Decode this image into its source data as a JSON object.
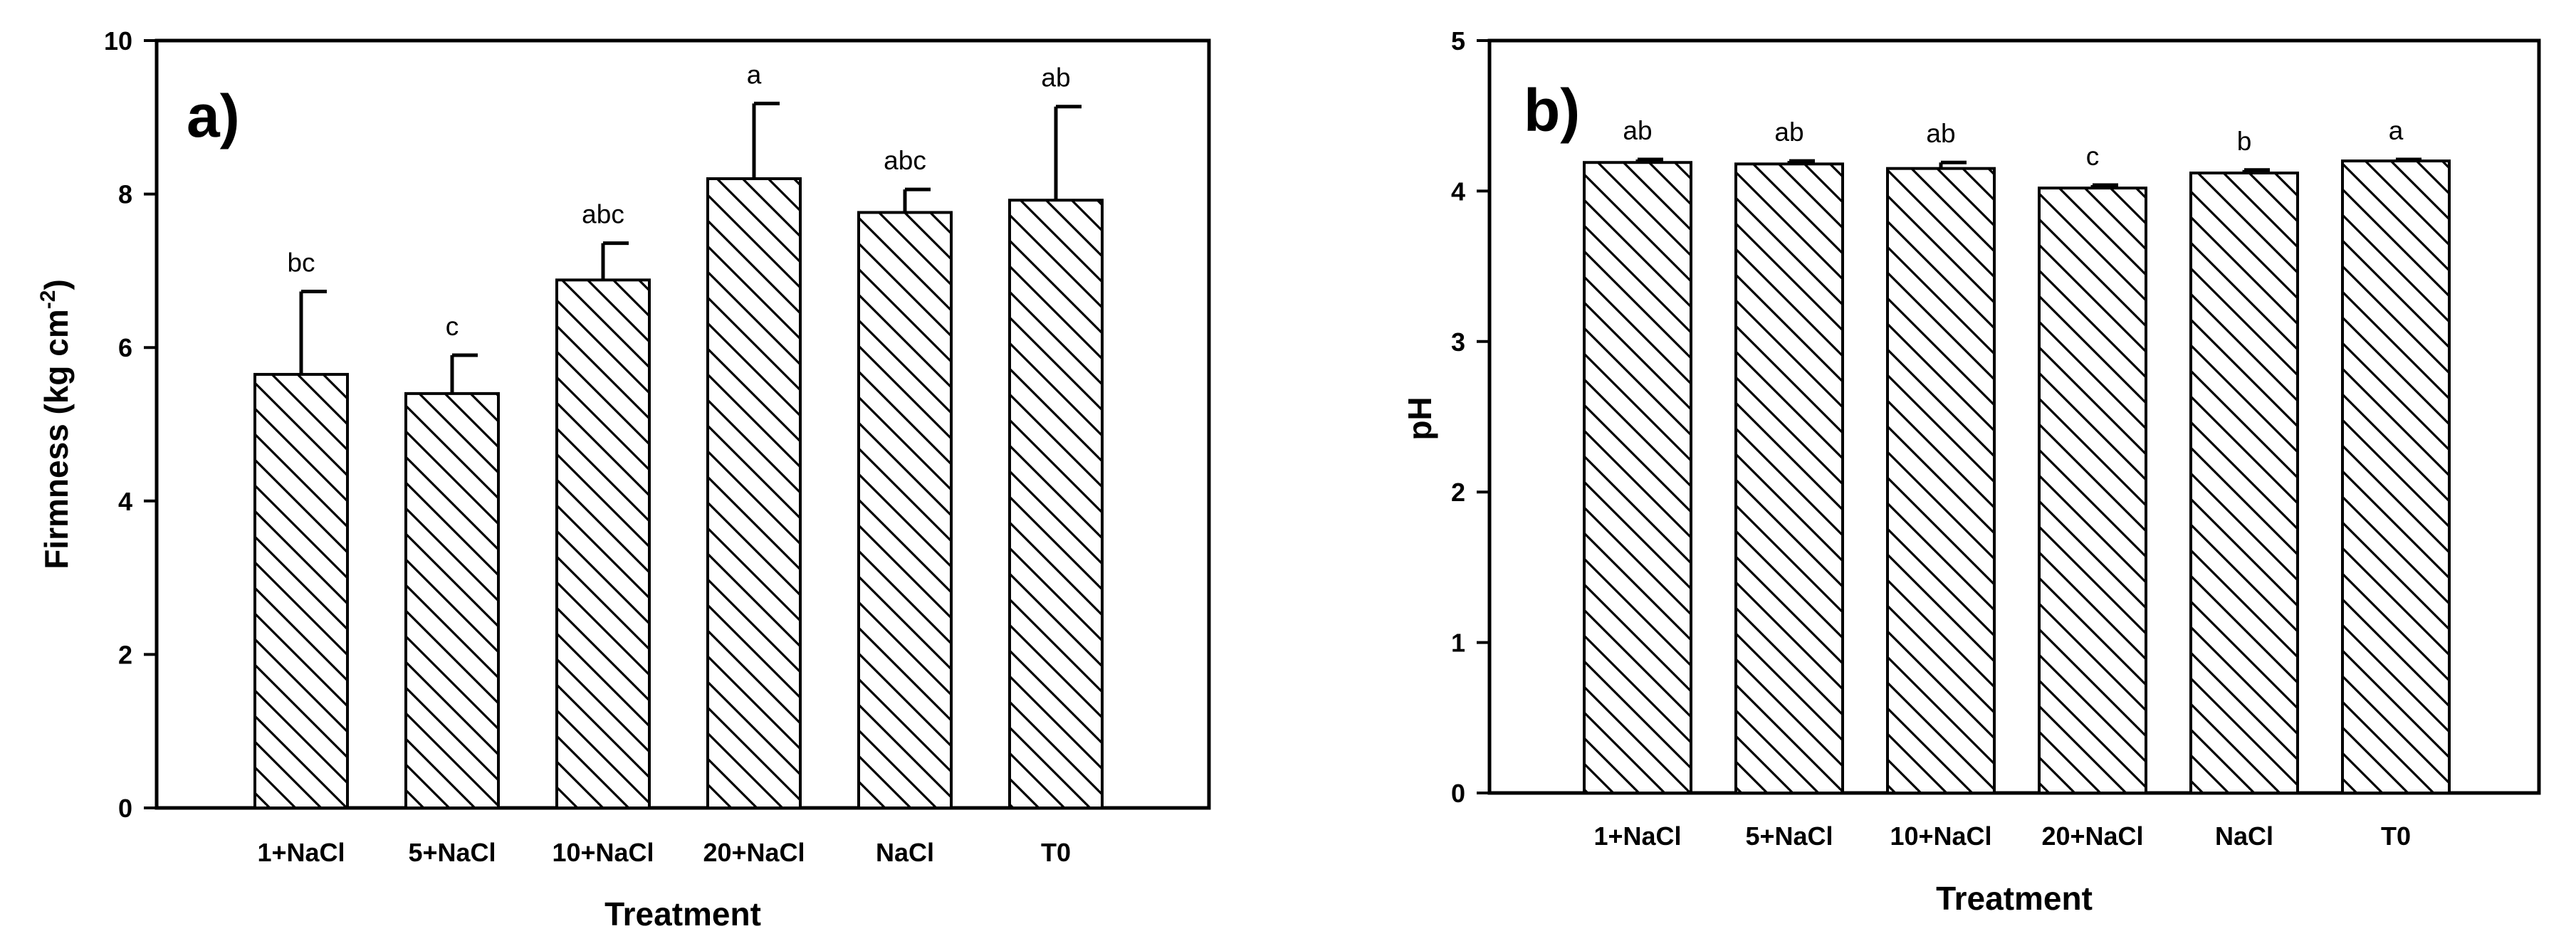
{
  "chart_data": [
    {
      "type": "bar",
      "panel_label": "a)",
      "xlabel": "Treatment",
      "ylabel": "Firmness (kg cm",
      "ylabel_superscript": "-2",
      "ylabel_suffix": ")",
      "ylim": [
        0,
        10
      ],
      "yticks": [
        "0",
        "2",
        "4",
        "6",
        "8",
        "10"
      ],
      "categories": [
        "1+NaCl",
        "5+NaCl",
        "10+NaCl",
        "20+NaCl",
        "NaCl",
        "T0"
      ],
      "values": [
        5.65,
        5.4,
        6.88,
        8.2,
        7.76,
        7.92
      ],
      "error": [
        1.08,
        0.5,
        0.48,
        0.98,
        0.3,
        1.22
      ],
      "significance": [
        "bc",
        "c",
        "abc",
        "a",
        "abc",
        "ab"
      ],
      "bar_pattern": "diagonal-hatch",
      "grid": false,
      "legend": "none"
    },
    {
      "type": "bar",
      "panel_label": "b)",
      "xlabel": "Treatment",
      "ylabel": "pH",
      "ylim": [
        0,
        5
      ],
      "yticks": [
        "0",
        "1",
        "2",
        "3",
        "4",
        "5"
      ],
      "categories": [
        "1+NaCl",
        "5+NaCl",
        "10+NaCl",
        "20+NaCl",
        "NaCl",
        "T0"
      ],
      "values": [
        4.19,
        4.18,
        4.15,
        4.02,
        4.12,
        4.2
      ],
      "error": [
        0.02,
        0.02,
        0.04,
        0.02,
        0.02,
        0.01
      ],
      "significance": [
        "ab",
        "ab",
        "ab",
        "c",
        "b",
        "a"
      ],
      "bar_pattern": "diagonal-hatch",
      "grid": false,
      "legend": "none"
    }
  ]
}
